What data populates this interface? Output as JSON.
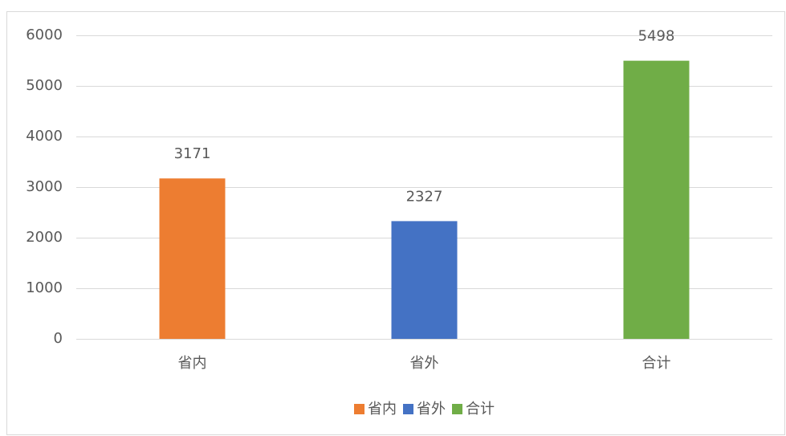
{
  "chart_data": {
    "type": "bar",
    "categories": [
      "省内",
      "省外",
      "合计"
    ],
    "values": [
      3171,
      2327,
      5498
    ],
    "colors": [
      "#ed7d31",
      "#4472c4",
      "#70ad47"
    ],
    "ylim": [
      0,
      6000
    ],
    "yticks": [
      0,
      1000,
      2000,
      3000,
      4000,
      5000,
      6000
    ],
    "grid": true,
    "legend": "bottom"
  }
}
